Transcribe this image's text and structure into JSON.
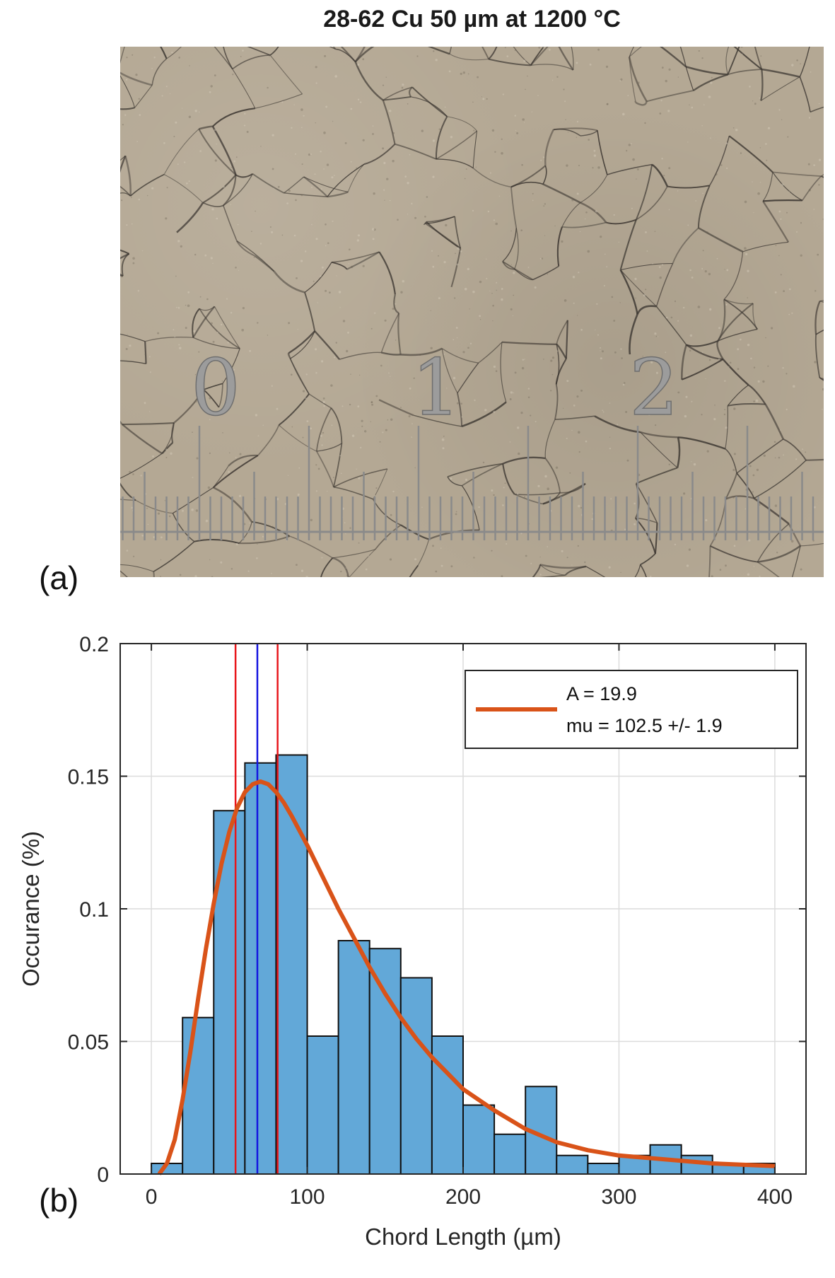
{
  "figure": {
    "title": "28-62 Cu 50 µm at 1200 °C",
    "panel_a_label": "(a)",
    "panel_b_label": "(b)",
    "micrograph": {
      "scale_labels": [
        "0",
        "1",
        "2"
      ],
      "background_color": "#b4a894",
      "grain_boundary_color": "#3a3530",
      "scale_color": "#8a8a8a"
    }
  },
  "chart_data": {
    "type": "bar",
    "xlabel": "Chord Length (µm)",
    "ylabel": "Occurance (%)",
    "xlim": [
      -20,
      420
    ],
    "ylim": [
      0,
      0.2
    ],
    "x_ticks": [
      0,
      100,
      200,
      300,
      400
    ],
    "y_ticks": [
      0,
      0.05,
      0.1,
      0.15,
      0.2
    ],
    "y_tick_labels": [
      "0",
      "0.05",
      "0.1",
      "0.15",
      "0.2"
    ],
    "grid": true,
    "bin_edges": [
      0,
      20,
      40,
      60,
      80,
      100,
      120,
      140,
      160,
      180,
      200,
      220,
      240,
      260,
      280,
      300,
      320,
      340,
      360,
      380,
      400
    ],
    "bar_values": [
      0.004,
      0.059,
      0.137,
      0.155,
      0.158,
      0.052,
      0.088,
      0.085,
      0.074,
      0.052,
      0.026,
      0.015,
      0.033,
      0.007,
      0.004,
      0.007,
      0.011,
      0.007,
      0.004,
      0.004
    ],
    "bar_color": "#62a8d8",
    "fit_curve": {
      "color": "#d95319",
      "points": [
        [
          5,
          0.0
        ],
        [
          10,
          0.004
        ],
        [
          15,
          0.013
        ],
        [
          20,
          0.028
        ],
        [
          25,
          0.046
        ],
        [
          30,
          0.066
        ],
        [
          35,
          0.085
        ],
        [
          40,
          0.102
        ],
        [
          45,
          0.117
        ],
        [
          50,
          0.129
        ],
        [
          55,
          0.138
        ],
        [
          60,
          0.144
        ],
        [
          65,
          0.147
        ],
        [
          70,
          0.148
        ],
        [
          75,
          0.147
        ],
        [
          80,
          0.144
        ],
        [
          85,
          0.14
        ],
        [
          90,
          0.135
        ],
        [
          100,
          0.124
        ],
        [
          110,
          0.112
        ],
        [
          120,
          0.1
        ],
        [
          130,
          0.089
        ],
        [
          140,
          0.078
        ],
        [
          150,
          0.068
        ],
        [
          160,
          0.059
        ],
        [
          170,
          0.051
        ],
        [
          180,
          0.044
        ],
        [
          190,
          0.038
        ],
        [
          200,
          0.032
        ],
        [
          220,
          0.024
        ],
        [
          240,
          0.017
        ],
        [
          260,
          0.012
        ],
        [
          280,
          0.009
        ],
        [
          300,
          0.007
        ],
        [
          320,
          0.006
        ],
        [
          340,
          0.005
        ],
        [
          360,
          0.004
        ],
        [
          380,
          0.0035
        ],
        [
          400,
          0.003
        ]
      ]
    },
    "vertical_lines": [
      {
        "x": 54,
        "color": "#e8161b"
      },
      {
        "x": 68,
        "color": "#1414e0"
      },
      {
        "x": 81,
        "color": "#e8161b"
      }
    ],
    "legend": {
      "placement": "top-right",
      "lines": [
        "A = 19.9",
        "mu = 102.5 +/-  1.9"
      ]
    }
  }
}
